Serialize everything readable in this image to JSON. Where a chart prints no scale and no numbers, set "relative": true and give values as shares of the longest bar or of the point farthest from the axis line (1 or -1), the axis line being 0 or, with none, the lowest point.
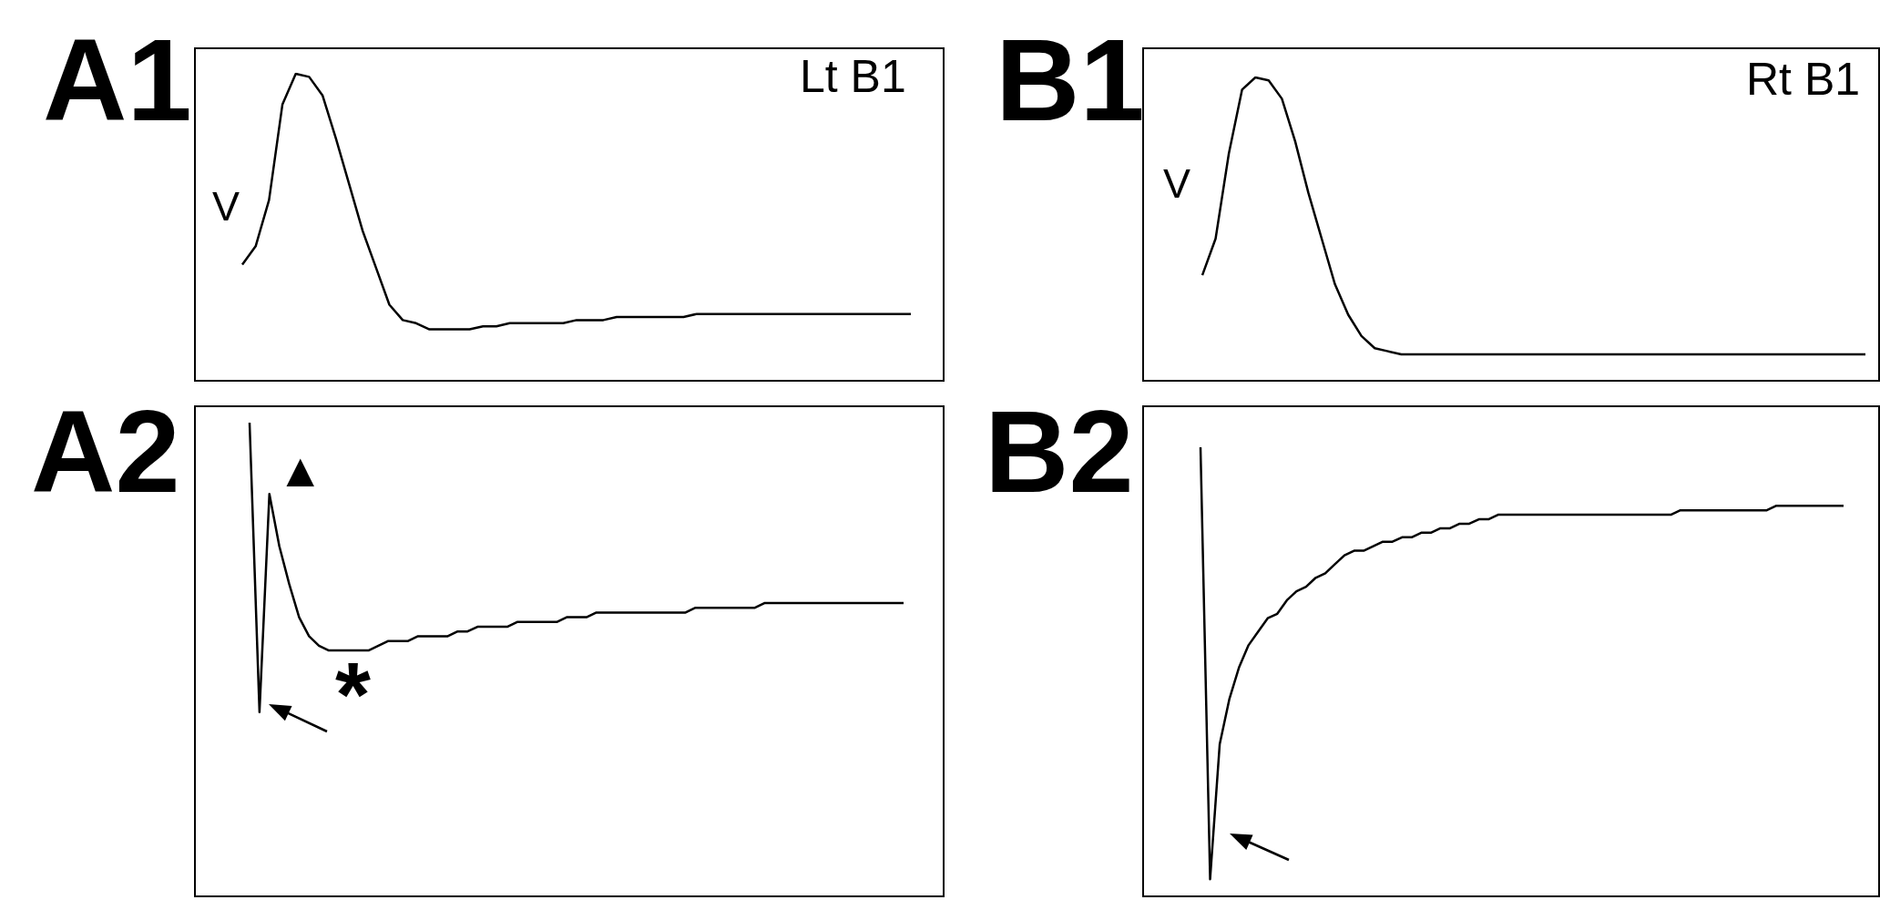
{
  "chart_data": [
    {
      "type": "line",
      "title": "A1",
      "relative": true,
      "marker": "none",
      "annotations": [
        "V",
        "Lt B1"
      ],
      "categories": [
        null,
        null,
        null,
        null,
        null,
        null,
        null,
        null,
        null,
        null,
        null,
        null,
        null,
        null,
        null,
        null,
        null,
        null,
        null,
        null,
        null,
        null,
        null,
        null,
        null,
        null,
        null,
        null,
        null,
        null,
        null,
        null,
        null,
        null,
        null,
        null,
        null,
        null,
        null,
        null,
        null,
        null,
        null,
        null,
        null,
        null,
        null,
        null,
        null,
        null,
        null
      ],
      "series": [
        {
          "color": "#000000",
          "values": [
            0.38,
            0.44,
            0.59,
            0.9,
            1,
            0.99,
            0.93,
            0.79,
            0.64,
            0.49,
            0.37,
            0.25,
            0.2,
            0.19,
            0.17,
            0.17,
            0.17,
            0.17,
            0.18,
            0.18,
            0.19,
            0.19,
            0.19,
            0.19,
            0.19,
            0.2,
            0.2,
            0.2,
            0.21,
            0.21,
            0.21,
            0.21,
            0.21,
            0.21,
            0.22,
            0.22,
            0.22,
            0.22,
            0.22,
            0.22,
            0.22,
            0.22,
            0.22,
            0.22,
            0.22,
            0.22,
            0.22,
            0.22,
            0.22,
            0.22,
            0.22
          ]
        }
      ]
    },
    {
      "type": "line",
      "title": "B1",
      "relative": true,
      "marker": "none",
      "annotations": [
        "V",
        "Rt B1"
      ],
      "categories": [
        null,
        null,
        null,
        null,
        null,
        null,
        null,
        null,
        null,
        null,
        null,
        null,
        null,
        null,
        null,
        null,
        null,
        null,
        null,
        null,
        null,
        null,
        null,
        null,
        null,
        null,
        null,
        null,
        null,
        null,
        null,
        null,
        null,
        null,
        null,
        null,
        null,
        null,
        null,
        null,
        null,
        null,
        null,
        null,
        null,
        null,
        null,
        null,
        null,
        null,
        null
      ],
      "series": [
        {
          "color": "#000000",
          "values": [
            0.35,
            0.47,
            0.75,
            0.96,
            1,
            0.99,
            0.93,
            0.79,
            0.62,
            0.47,
            0.32,
            0.22,
            0.15,
            0.11,
            0.1,
            0.09,
            0.09,
            0.09,
            0.09,
            0.09,
            0.09,
            0.09,
            0.09,
            0.09,
            0.09,
            0.09,
            0.09,
            0.09,
            0.09,
            0.09,
            0.09,
            0.09,
            0.09,
            0.09,
            0.09,
            0.09,
            0.09,
            0.09,
            0.09,
            0.09,
            0.09,
            0.09,
            0.09,
            0.09,
            0.09,
            0.09,
            0.09,
            0.09,
            0.09,
            0.09,
            0.09
          ]
        }
      ]
    },
    {
      "type": "line",
      "title": "A2",
      "relative": true,
      "marker": "none",
      "annotations": [
        "▲",
        "*"
      ],
      "categories": [
        null,
        null,
        null,
        null,
        null,
        null,
        null,
        null,
        null,
        null,
        null,
        null,
        null,
        null,
        null,
        null,
        null,
        null,
        null,
        null,
        null,
        null,
        null,
        null,
        null,
        null,
        null,
        null,
        null,
        null,
        null,
        null,
        null,
        null,
        null,
        null,
        null,
        null,
        null,
        null,
        null,
        null,
        null,
        null,
        null,
        null,
        null,
        null,
        null,
        null,
        null,
        null,
        null,
        null,
        null,
        null,
        null,
        null,
        null,
        null,
        null,
        null,
        null,
        null,
        null,
        null,
        null
      ],
      "series": [
        {
          "color": "#000000",
          "values": [
            1,
            0.39,
            0.85,
            0.74,
            0.66,
            0.59,
            0.55,
            0.53,
            0.52,
            0.52,
            0.52,
            0.52,
            0.52,
            0.53,
            0.54,
            0.54,
            0.54,
            0.55,
            0.55,
            0.55,
            0.55,
            0.56,
            0.56,
            0.57,
            0.57,
            0.57,
            0.57,
            0.58,
            0.58,
            0.58,
            0.58,
            0.58,
            0.59,
            0.59,
            0.59,
            0.6,
            0.6,
            0.6,
            0.6,
            0.6,
            0.6,
            0.6,
            0.6,
            0.6,
            0.6,
            0.61,
            0.61,
            0.61,
            0.61,
            0.61,
            0.61,
            0.61,
            0.62,
            0.62,
            0.62,
            0.62,
            0.62,
            0.62,
            0.62,
            0.62,
            0.62,
            0.62,
            0.62,
            0.62,
            0.62,
            0.62,
            0.62
          ]
        }
      ]
    },
    {
      "type": "line",
      "title": "B2",
      "relative": true,
      "marker": "none",
      "categories": [
        null,
        null,
        null,
        null,
        null,
        null,
        null,
        null,
        null,
        null,
        null,
        null,
        null,
        null,
        null,
        null,
        null,
        null,
        null,
        null,
        null,
        null,
        null,
        null,
        null,
        null,
        null,
        null,
        null,
        null,
        null,
        null,
        null,
        null,
        null,
        null,
        null,
        null,
        null,
        null,
        null,
        null,
        null,
        null,
        null,
        null,
        null,
        null,
        null,
        null,
        null,
        null,
        null,
        null,
        null,
        null,
        null,
        null,
        null,
        null,
        null,
        null,
        null,
        null,
        null,
        null,
        null,
        null
      ],
      "series": [
        {
          "color": "#000000",
          "values": [
            1,
            0.04,
            0.34,
            0.44,
            0.51,
            0.56,
            0.59,
            0.62,
            0.63,
            0.66,
            0.68,
            0.69,
            0.71,
            0.72,
            0.74,
            0.76,
            0.77,
            0.77,
            0.78,
            0.79,
            0.79,
            0.8,
            0.8,
            0.81,
            0.81,
            0.82,
            0.82,
            0.83,
            0.83,
            0.84,
            0.84,
            0.85,
            0.85,
            0.85,
            0.85,
            0.85,
            0.85,
            0.85,
            0.85,
            0.85,
            0.85,
            0.85,
            0.85,
            0.85,
            0.85,
            0.85,
            0.85,
            0.85,
            0.85,
            0.85,
            0.86,
            0.86,
            0.86,
            0.86,
            0.86,
            0.86,
            0.86,
            0.86,
            0.86,
            0.86,
            0.87,
            0.87,
            0.87,
            0.87,
            0.87,
            0.87,
            0.87,
            0.87
          ]
        }
      ]
    }
  ]
}
